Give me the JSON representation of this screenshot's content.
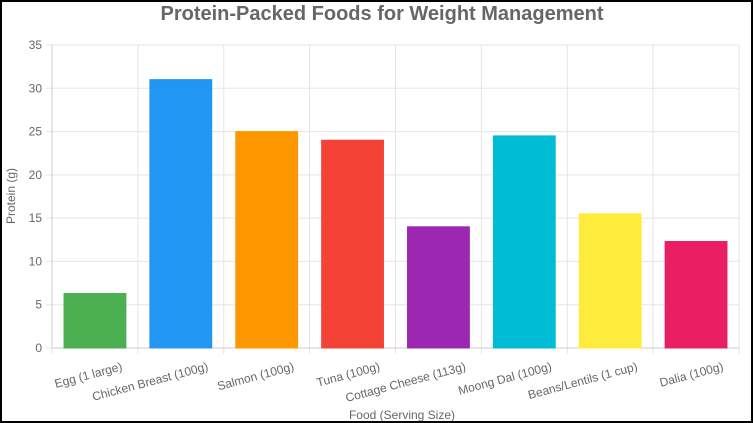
{
  "chart_data": {
    "type": "bar",
    "title": "Protein-Packed Foods for Weight Management",
    "xlabel": "Food (Serving Size)",
    "ylabel": "Protein (g)",
    "ylim": [
      0,
      35
    ],
    "yticks": [
      0,
      5,
      10,
      15,
      20,
      25,
      30,
      35
    ],
    "grid": true,
    "categories": [
      "Egg (1 large)",
      "Chicken Breast (100g)",
      "Salmon (100g)",
      "Tuna (100g)",
      "Cottage Cheese (113g)",
      "Moong Dal (100g)",
      "Beans/Lentils (1 cup)",
      "Dalia (100g)"
    ],
    "values": [
      6.3,
      31,
      25,
      24,
      14,
      24.5,
      15.5,
      12.3
    ],
    "colors": [
      "#4caf50",
      "#2196f3",
      "#ff9800",
      "#f44336",
      "#9c27b0",
      "#00bcd4",
      "#ffeb3b",
      "#e91e63"
    ]
  }
}
